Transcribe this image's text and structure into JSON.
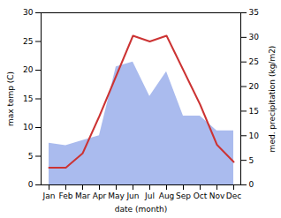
{
  "chart_data": {
    "type": "line",
    "xlabel": "date (month)",
    "ylabel": "max temp (C)",
    "y2label": "med. precipitation (kg/m2)",
    "categories": [
      "Jan",
      "Feb",
      "Mar",
      "Apr",
      "May",
      "Jun",
      "Jul",
      "Aug",
      "Sep",
      "Oct",
      "Nov",
      "Dec"
    ],
    "series": [
      {
        "type": "line",
        "color": "#cc3333",
        "values": [
          3.0,
          3.0,
          5.5,
          12.0,
          19.0,
          26.0,
          25.0,
          26.0,
          20.0,
          14.0,
          7.0,
          4.0
        ]
      },
      {
        "type": "area",
        "color": "#aabbee",
        "axis": "y2",
        "values": [
          8.5,
          8.0,
          9.0,
          10.0,
          24.0,
          25.0,
          18.0,
          23.0,
          14.0,
          14.0,
          11.0,
          11.0
        ]
      }
    ],
    "ylim": [
      0,
      30
    ],
    "yticks": [
      0,
      5,
      10,
      15,
      20,
      25,
      30
    ],
    "y2lim": [
      0,
      35
    ],
    "y2ticks": [
      0,
      5,
      10,
      15,
      20,
      25,
      30,
      35
    ],
    "grid": false
  }
}
